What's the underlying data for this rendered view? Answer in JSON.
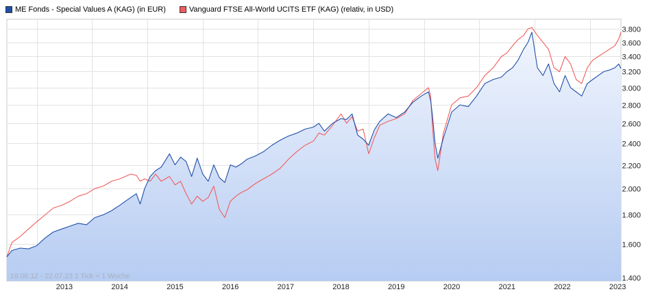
{
  "legend": [
    {
      "label": "ME Fonds - Special Values A (KAG) (in EUR)",
      "color": "#1f4fa8"
    },
    {
      "label": "Vanguard FTSE All-World UCITS ETF (KAG) (relativ, in USD)",
      "color": "#f25c5c"
    }
  ],
  "note": "19.06.12 - 22.07.23   1 Tick = 1 Woche",
  "chart_data": {
    "type": "line",
    "title": "",
    "y_scale": "log",
    "ylim": [
      1380,
      3950
    ],
    "xlim": [
      2012.46,
      2023.56
    ],
    "y_ticks": [
      1400,
      1600,
      1800,
      2000,
      2200,
      2400,
      2600,
      2800,
      3000,
      3200,
      3400,
      3600,
      3800
    ],
    "y_tick_labels": [
      "1.400",
      "1.600",
      "1.800",
      "2.000",
      "2.200",
      "2.400",
      "2.600",
      "2.800",
      "3.000",
      "3.200",
      "3.400",
      "3.600",
      "3.800"
    ],
    "x_ticks": [
      2013,
      2014,
      2015,
      2016,
      2017,
      2018,
      2019,
      2020,
      2021,
      2022,
      2023
    ],
    "x_tick_labels": [
      "2013",
      "2014",
      "2015",
      "2016",
      "2017",
      "2018",
      "2019",
      "2020",
      "2021",
      "2022",
      "2023"
    ],
    "series": [
      {
        "name": "ME Fonds - Special Values A (KAG) (in EUR)",
        "color": "#1f4fa8",
        "fill": true,
        "x": [
          2012.46,
          2012.55,
          2012.7,
          2012.85,
          2013.0,
          2013.15,
          2013.3,
          2013.45,
          2013.6,
          2013.75,
          2013.9,
          2014.05,
          2014.2,
          2014.35,
          2014.5,
          2014.6,
          2014.7,
          2014.8,
          2014.87,
          2014.95,
          2015.05,
          2015.15,
          2015.25,
          2015.4,
          2015.5,
          2015.6,
          2015.7,
          2015.8,
          2015.9,
          2016.0,
          2016.1,
          2016.2,
          2016.3,
          2016.4,
          2016.5,
          2016.6,
          2016.7,
          2016.8,
          2016.95,
          2017.1,
          2017.25,
          2017.4,
          2017.55,
          2017.7,
          2017.85,
          2018.0,
          2018.1,
          2018.2,
          2018.35,
          2018.5,
          2018.6,
          2018.7,
          2018.8,
          2018.9,
          2019.0,
          2019.1,
          2019.2,
          2019.35,
          2019.5,
          2019.65,
          2019.8,
          2019.95,
          2020.08,
          2020.12,
          2020.15,
          2020.2,
          2020.25,
          2020.35,
          2020.5,
          2020.65,
          2020.8,
          2020.95,
          2021.1,
          2021.25,
          2021.4,
          2021.5,
          2021.6,
          2021.7,
          2021.8,
          2021.88,
          2021.95,
          2022.05,
          2022.15,
          2022.25,
          2022.35,
          2022.45,
          2022.55,
          2022.65,
          2022.75,
          2022.85,
          2022.95,
          2023.05,
          2023.15,
          2023.25,
          2023.35,
          2023.45,
          2023.52,
          2023.56
        ],
        "y": [
          1520,
          1560,
          1575,
          1570,
          1590,
          1640,
          1680,
          1700,
          1720,
          1740,
          1730,
          1780,
          1800,
          1830,
          1870,
          1900,
          1930,
          1960,
          1880,
          2000,
          2100,
          2150,
          2180,
          2300,
          2200,
          2270,
          2230,
          2100,
          2260,
          2120,
          2060,
          2200,
          2090,
          2050,
          2200,
          2180,
          2210,
          2250,
          2280,
          2320,
          2380,
          2430,
          2470,
          2500,
          2540,
          2560,
          2600,
          2520,
          2600,
          2650,
          2640,
          2700,
          2480,
          2440,
          2380,
          2530,
          2620,
          2700,
          2660,
          2720,
          2830,
          2900,
          2950,
          2850,
          2700,
          2400,
          2260,
          2450,
          2720,
          2800,
          2780,
          2900,
          3050,
          3100,
          3130,
          3200,
          3250,
          3350,
          3500,
          3600,
          3750,
          3250,
          3150,
          3300,
          3050,
          2950,
          3150,
          3000,
          2950,
          2900,
          3050,
          3100,
          3150,
          3200,
          3220,
          3250,
          3300,
          3240
        ]
      },
      {
        "name": "Vanguard FTSE All-World UCITS ETF (KAG) (relativ, in USD)",
        "color": "#f25c5c",
        "fill": false,
        "x": [
          2012.46,
          2012.55,
          2012.7,
          2012.85,
          2013.0,
          2013.15,
          2013.3,
          2013.45,
          2013.6,
          2013.75,
          2013.9,
          2014.05,
          2014.2,
          2014.35,
          2014.5,
          2014.6,
          2014.7,
          2014.8,
          2014.87,
          2014.95,
          2015.05,
          2015.15,
          2015.25,
          2015.4,
          2015.5,
          2015.6,
          2015.7,
          2015.8,
          2015.9,
          2016.0,
          2016.1,
          2016.2,
          2016.3,
          2016.4,
          2016.5,
          2016.6,
          2016.7,
          2016.8,
          2016.95,
          2017.1,
          2017.25,
          2017.4,
          2017.55,
          2017.7,
          2017.85,
          2018.0,
          2018.1,
          2018.2,
          2018.35,
          2018.5,
          2018.6,
          2018.7,
          2018.8,
          2018.9,
          2019.0,
          2019.1,
          2019.2,
          2019.35,
          2019.5,
          2019.65,
          2019.8,
          2019.95,
          2020.08,
          2020.12,
          2020.15,
          2020.2,
          2020.25,
          2020.35,
          2020.5,
          2020.65,
          2020.8,
          2020.95,
          2021.1,
          2021.25,
          2021.4,
          2021.5,
          2021.6,
          2021.7,
          2021.8,
          2021.88,
          2021.95,
          2022.05,
          2022.15,
          2022.25,
          2022.35,
          2022.45,
          2022.55,
          2022.65,
          2022.75,
          2022.85,
          2022.95,
          2023.05,
          2023.15,
          2023.25,
          2023.35,
          2023.45,
          2023.52,
          2023.56
        ],
        "y": [
          1520,
          1610,
          1650,
          1700,
          1750,
          1800,
          1850,
          1870,
          1900,
          1940,
          1960,
          2000,
          2020,
          2060,
          2080,
          2100,
          2120,
          2110,
          2060,
          2080,
          2060,
          2120,
          2060,
          2100,
          2030,
          2060,
          1960,
          1880,
          1940,
          1900,
          1930,
          2020,
          1840,
          1780,
          1900,
          1940,
          1970,
          1990,
          2040,
          2080,
          2120,
          2170,
          2250,
          2320,
          2380,
          2420,
          2500,
          2480,
          2580,
          2700,
          2600,
          2670,
          2520,
          2540,
          2300,
          2450,
          2580,
          2620,
          2650,
          2700,
          2850,
          2930,
          3000,
          2900,
          2600,
          2250,
          2150,
          2500,
          2800,
          2880,
          2900,
          3000,
          3150,
          3250,
          3400,
          3450,
          3550,
          3640,
          3700,
          3800,
          3820,
          3700,
          3600,
          3500,
          3250,
          3200,
          3400,
          3300,
          3100,
          3050,
          3250,
          3350,
          3400,
          3450,
          3500,
          3550,
          3650,
          3750
        ]
      }
    ]
  }
}
